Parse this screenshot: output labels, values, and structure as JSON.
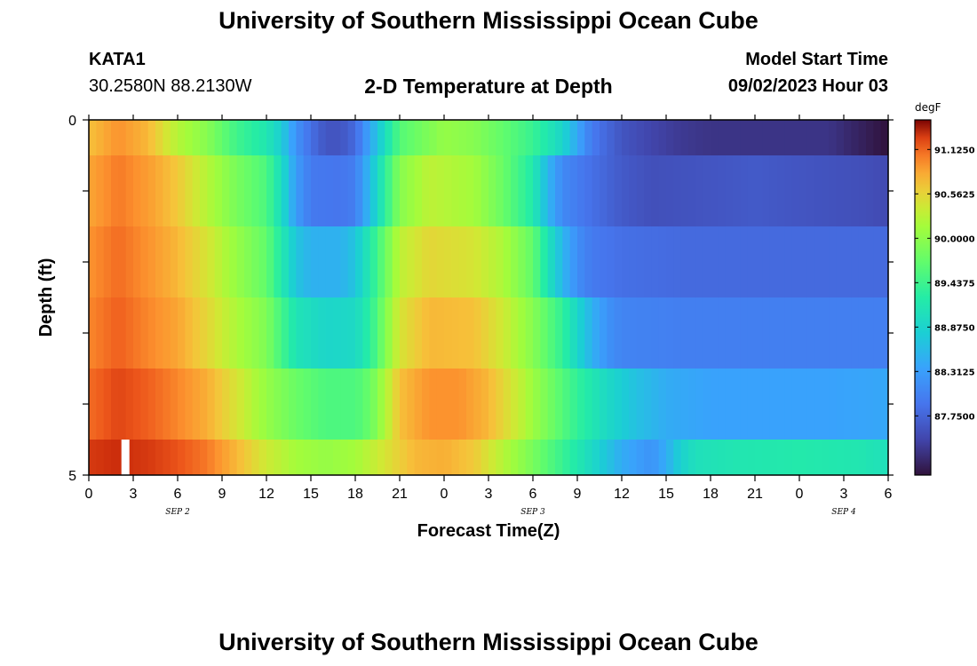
{
  "header": {
    "title": "University of Southern Mississippi Ocean Cube",
    "station_id": "KATA1",
    "station_coords": "30.2580N  88.2130W",
    "plot_title": "2-D Temperature at Depth",
    "model_start_label": "Model Start Time",
    "model_start_value": "09/02/2023 Hour 03"
  },
  "footer": {
    "title": "University of Southern Mississippi Ocean Cube"
  },
  "chart_data": {
    "type": "heatmap",
    "title": "2-D Temperature at Depth",
    "xlabel": "Forecast Time(Z)",
    "ylabel": "Depth (ft)",
    "x_tick_labels": [
      "0",
      "3",
      "6",
      "9",
      "12",
      "15",
      "18",
      "21",
      "0",
      "3",
      "6",
      "9",
      "12",
      "15",
      "18",
      "21",
      "0",
      "3",
      "6"
    ],
    "date_labels": [
      {
        "text": "SEP 2",
        "hour_index": 6
      },
      {
        "text": "SEP 3",
        "hour_index": 30
      },
      {
        "text": "SEP 4",
        "hour_index": 51
      }
    ],
    "y_tick_labels": [
      "0",
      "5"
    ],
    "xlim_hours": [
      0,
      54
    ],
    "ylim_ft": [
      0,
      5
    ],
    "depth_levels_ft": [
      0,
      1,
      2,
      3,
      4,
      5
    ],
    "colorbar": {
      "unit": "degF",
      "min": 87.0,
      "max": 91.5,
      "tick_labels": [
        "91.1250",
        "90.5625",
        "90.0000",
        "89.4375",
        "88.8750",
        "88.3125",
        "87.7500"
      ]
    },
    "profiles": [
      {
        "depth_layer": 1,
        "points": [
          [
            0,
            90.7
          ],
          [
            2,
            90.95
          ],
          [
            4,
            90.75
          ],
          [
            6,
            90.25
          ],
          [
            8,
            89.95
          ],
          [
            10,
            89.45
          ],
          [
            12,
            89.15
          ],
          [
            13,
            88.8
          ],
          [
            14,
            88.2
          ],
          [
            15,
            87.85
          ],
          [
            16,
            87.6
          ],
          [
            17,
            87.6
          ],
          [
            18,
            87.8
          ],
          [
            19,
            88.4
          ],
          [
            20,
            89.0
          ],
          [
            21,
            89.6
          ],
          [
            24,
            90.05
          ],
          [
            26,
            89.95
          ],
          [
            28,
            89.7
          ],
          [
            30,
            89.4
          ],
          [
            32,
            88.9
          ],
          [
            33,
            88.4
          ],
          [
            34,
            87.95
          ],
          [
            36,
            87.6
          ],
          [
            38,
            87.45
          ],
          [
            40,
            87.35
          ],
          [
            42,
            87.3
          ],
          [
            46,
            87.3
          ],
          [
            48,
            87.3
          ],
          [
            50,
            87.3
          ],
          [
            52,
            87.15
          ],
          [
            54,
            87.0
          ]
        ]
      },
      {
        "depth_layer": 2,
        "points": [
          [
            0,
            90.85
          ],
          [
            2,
            91.05
          ],
          [
            4,
            90.9
          ],
          [
            6,
            90.65
          ],
          [
            8,
            90.25
          ],
          [
            10,
            89.85
          ],
          [
            12,
            89.55
          ],
          [
            13,
            89.0
          ],
          [
            14,
            88.3
          ],
          [
            15,
            87.95
          ],
          [
            17,
            87.9
          ],
          [
            18,
            88.0
          ],
          [
            19,
            88.6
          ],
          [
            20,
            89.3
          ],
          [
            21,
            89.95
          ],
          [
            23,
            90.3
          ],
          [
            26,
            90.15
          ],
          [
            28,
            89.75
          ],
          [
            30,
            89.2
          ],
          [
            31,
            88.55
          ],
          [
            32,
            88.1
          ],
          [
            34,
            87.85
          ],
          [
            36,
            87.65
          ],
          [
            38,
            87.55
          ],
          [
            42,
            87.6
          ],
          [
            45,
            87.65
          ],
          [
            48,
            87.6
          ],
          [
            52,
            87.55
          ],
          [
            54,
            87.5
          ]
        ]
      },
      {
        "depth_layer": 3,
        "points": [
          [
            0,
            90.95
          ],
          [
            2,
            91.1
          ],
          [
            4,
            90.95
          ],
          [
            6,
            90.75
          ],
          [
            8,
            90.45
          ],
          [
            10,
            90.05
          ],
          [
            12,
            89.7
          ],
          [
            13,
            89.2
          ],
          [
            14,
            88.7
          ],
          [
            15,
            88.5
          ],
          [
            17,
            88.5
          ],
          [
            18,
            88.7
          ],
          [
            19,
            89.2
          ],
          [
            20,
            89.75
          ],
          [
            21,
            90.3
          ],
          [
            23,
            90.55
          ],
          [
            26,
            90.45
          ],
          [
            28,
            90.2
          ],
          [
            30,
            89.7
          ],
          [
            31,
            89.1
          ],
          [
            32,
            88.55
          ],
          [
            33,
            88.15
          ],
          [
            34,
            87.95
          ],
          [
            36,
            87.85
          ],
          [
            40,
            87.8
          ],
          [
            45,
            87.8
          ],
          [
            50,
            87.8
          ],
          [
            54,
            87.8
          ]
        ]
      },
      {
        "depth_layer": 4,
        "points": [
          [
            0,
            91.0
          ],
          [
            2,
            91.15
          ],
          [
            4,
            91.0
          ],
          [
            6,
            90.85
          ],
          [
            8,
            90.55
          ],
          [
            10,
            90.2
          ],
          [
            12,
            89.9
          ],
          [
            13,
            89.5
          ],
          [
            14,
            89.1
          ],
          [
            16,
            88.9
          ],
          [
            18,
            88.95
          ],
          [
            19,
            89.3
          ],
          [
            20,
            89.9
          ],
          [
            21,
            90.45
          ],
          [
            23,
            90.75
          ],
          [
            26,
            90.7
          ],
          [
            28,
            90.4
          ],
          [
            30,
            89.95
          ],
          [
            32,
            89.35
          ],
          [
            33,
            88.9
          ],
          [
            34,
            88.5
          ],
          [
            35,
            88.2
          ],
          [
            36,
            88.05
          ],
          [
            40,
            88.0
          ],
          [
            45,
            88.0
          ],
          [
            50,
            88.0
          ],
          [
            54,
            88.0
          ]
        ]
      },
      {
        "depth_layer": 5,
        "points": [
          [
            0,
            91.1
          ],
          [
            2,
            91.25
          ],
          [
            4,
            91.15
          ],
          [
            6,
            91.0
          ],
          [
            8,
            90.8
          ],
          [
            10,
            90.45
          ],
          [
            12,
            90.05
          ],
          [
            14,
            89.75
          ],
          [
            16,
            89.55
          ],
          [
            18,
            89.55
          ],
          [
            19,
            89.75
          ],
          [
            20,
            90.2
          ],
          [
            21,
            90.7
          ],
          [
            23,
            90.95
          ],
          [
            25,
            90.95
          ],
          [
            27,
            90.75
          ],
          [
            29,
            90.35
          ],
          [
            31,
            89.85
          ],
          [
            33,
            89.35
          ],
          [
            35,
            88.95
          ],
          [
            37,
            88.65
          ],
          [
            39,
            88.45
          ],
          [
            42,
            88.35
          ],
          [
            46,
            88.35
          ],
          [
            50,
            88.35
          ],
          [
            54,
            88.4
          ]
        ]
      },
      {
        "depth_layer": 6,
        "points": [
          [
            0,
            91.3
          ],
          [
            2,
            91.35
          ],
          [
            4,
            91.3
          ],
          [
            6,
            91.2
          ],
          [
            8,
            91.05
          ],
          [
            10,
            90.75
          ],
          [
            12,
            90.4
          ],
          [
            14,
            90.15
          ],
          [
            16,
            90.05
          ],
          [
            18,
            90.15
          ],
          [
            20,
            90.45
          ],
          [
            22,
            90.75
          ],
          [
            24,
            90.8
          ],
          [
            26,
            90.65
          ],
          [
            28,
            90.25
          ],
          [
            30,
            89.85
          ],
          [
            32,
            89.4
          ],
          [
            34,
            88.95
          ],
          [
            36,
            88.45
          ],
          [
            38,
            88.2
          ],
          [
            39,
            88.45
          ],
          [
            40,
            88.85
          ],
          [
            41,
            89.05
          ],
          [
            44,
            89.15
          ],
          [
            48,
            89.2
          ],
          [
            52,
            89.15
          ],
          [
            54,
            89.05
          ]
        ]
      }
    ],
    "current_time_marker_hour": 2.5
  }
}
